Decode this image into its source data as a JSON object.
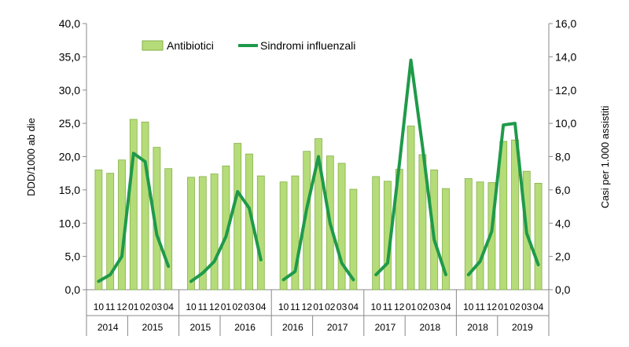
{
  "chart_data": {
    "type": "bar",
    "ylabel": "DDD/1000 ab die",
    "y2label": "Casi per 1.000 assistiti",
    "ylim": [
      0,
      40
    ],
    "y2lim": [
      0,
      16
    ],
    "yticks": [
      "0,0",
      "5,0",
      "10,0",
      "15,0",
      "20,0",
      "25,0",
      "30,0",
      "35,0",
      "40,0"
    ],
    "y2ticks": [
      "0,0",
      "2,0",
      "4,0",
      "6,0",
      "8,0",
      "10,0",
      "12,0",
      "14,0",
      "16,0"
    ],
    "legend_position": "top",
    "grid": false,
    "bar_color": "#b5dc78",
    "line_color": "#1f9a4a",
    "seasons": [
      {
        "months": [
          "10",
          "11",
          "12",
          "01",
          "02",
          "03",
          "04"
        ],
        "years": [
          {
            "label": "2014",
            "span": 3
          },
          {
            "label": "2015",
            "span": 4
          }
        ]
      },
      {
        "months": [
          "10",
          "11",
          "12",
          "01",
          "02",
          "03",
          "04"
        ],
        "years": [
          {
            "label": "2015",
            "span": 3
          },
          {
            "label": "2016",
            "span": 4
          }
        ]
      },
      {
        "months": [
          "10",
          "11",
          "12",
          "01",
          "02",
          "03",
          "04"
        ],
        "years": [
          {
            "label": "2016",
            "span": 3
          },
          {
            "label": "2017",
            "span": 4
          }
        ]
      },
      {
        "months": [
          "10",
          "11",
          "12",
          "01",
          "02",
          "03",
          "04"
        ],
        "years": [
          {
            "label": "2017",
            "span": 3
          },
          {
            "label": "2018",
            "span": 4
          }
        ]
      },
      {
        "months": [
          "10",
          "11",
          "12",
          "01",
          "02",
          "03",
          "04"
        ],
        "years": [
          {
            "label": "2018",
            "span": 3
          },
          {
            "label": "2019",
            "span": 4
          }
        ]
      }
    ],
    "series": [
      {
        "name": "Antibiotici",
        "type": "bar",
        "axis": "left",
        "values": [
          [
            18.0,
            17.5,
            19.5,
            25.6,
            25.2,
            21.4,
            18.2
          ],
          [
            16.9,
            17.0,
            17.4,
            18.6,
            22.0,
            20.4,
            17.1
          ],
          [
            16.2,
            17.1,
            20.8,
            22.7,
            20.1,
            19.0,
            15.1
          ],
          [
            17.0,
            16.3,
            18.1,
            24.6,
            20.3,
            18.0,
            15.2
          ],
          [
            16.7,
            16.2,
            16.1,
            22.3,
            22.5,
            17.8,
            16.0
          ]
        ]
      },
      {
        "name": "Sindromi influenzali",
        "type": "line",
        "axis": "right",
        "values": [
          [
            0.5,
            0.9,
            2.0,
            8.2,
            7.7,
            3.3,
            1.4
          ],
          [
            0.5,
            1.0,
            1.7,
            3.2,
            5.9,
            4.9,
            1.8
          ],
          [
            0.6,
            1.1,
            4.9,
            8.0,
            4.0,
            1.6,
            0.6
          ],
          [
            0.9,
            1.6,
            7.5,
            13.8,
            8.6,
            3.0,
            0.9
          ],
          [
            0.9,
            1.7,
            3.5,
            9.9,
            10.0,
            3.4,
            1.5
          ]
        ]
      }
    ]
  }
}
